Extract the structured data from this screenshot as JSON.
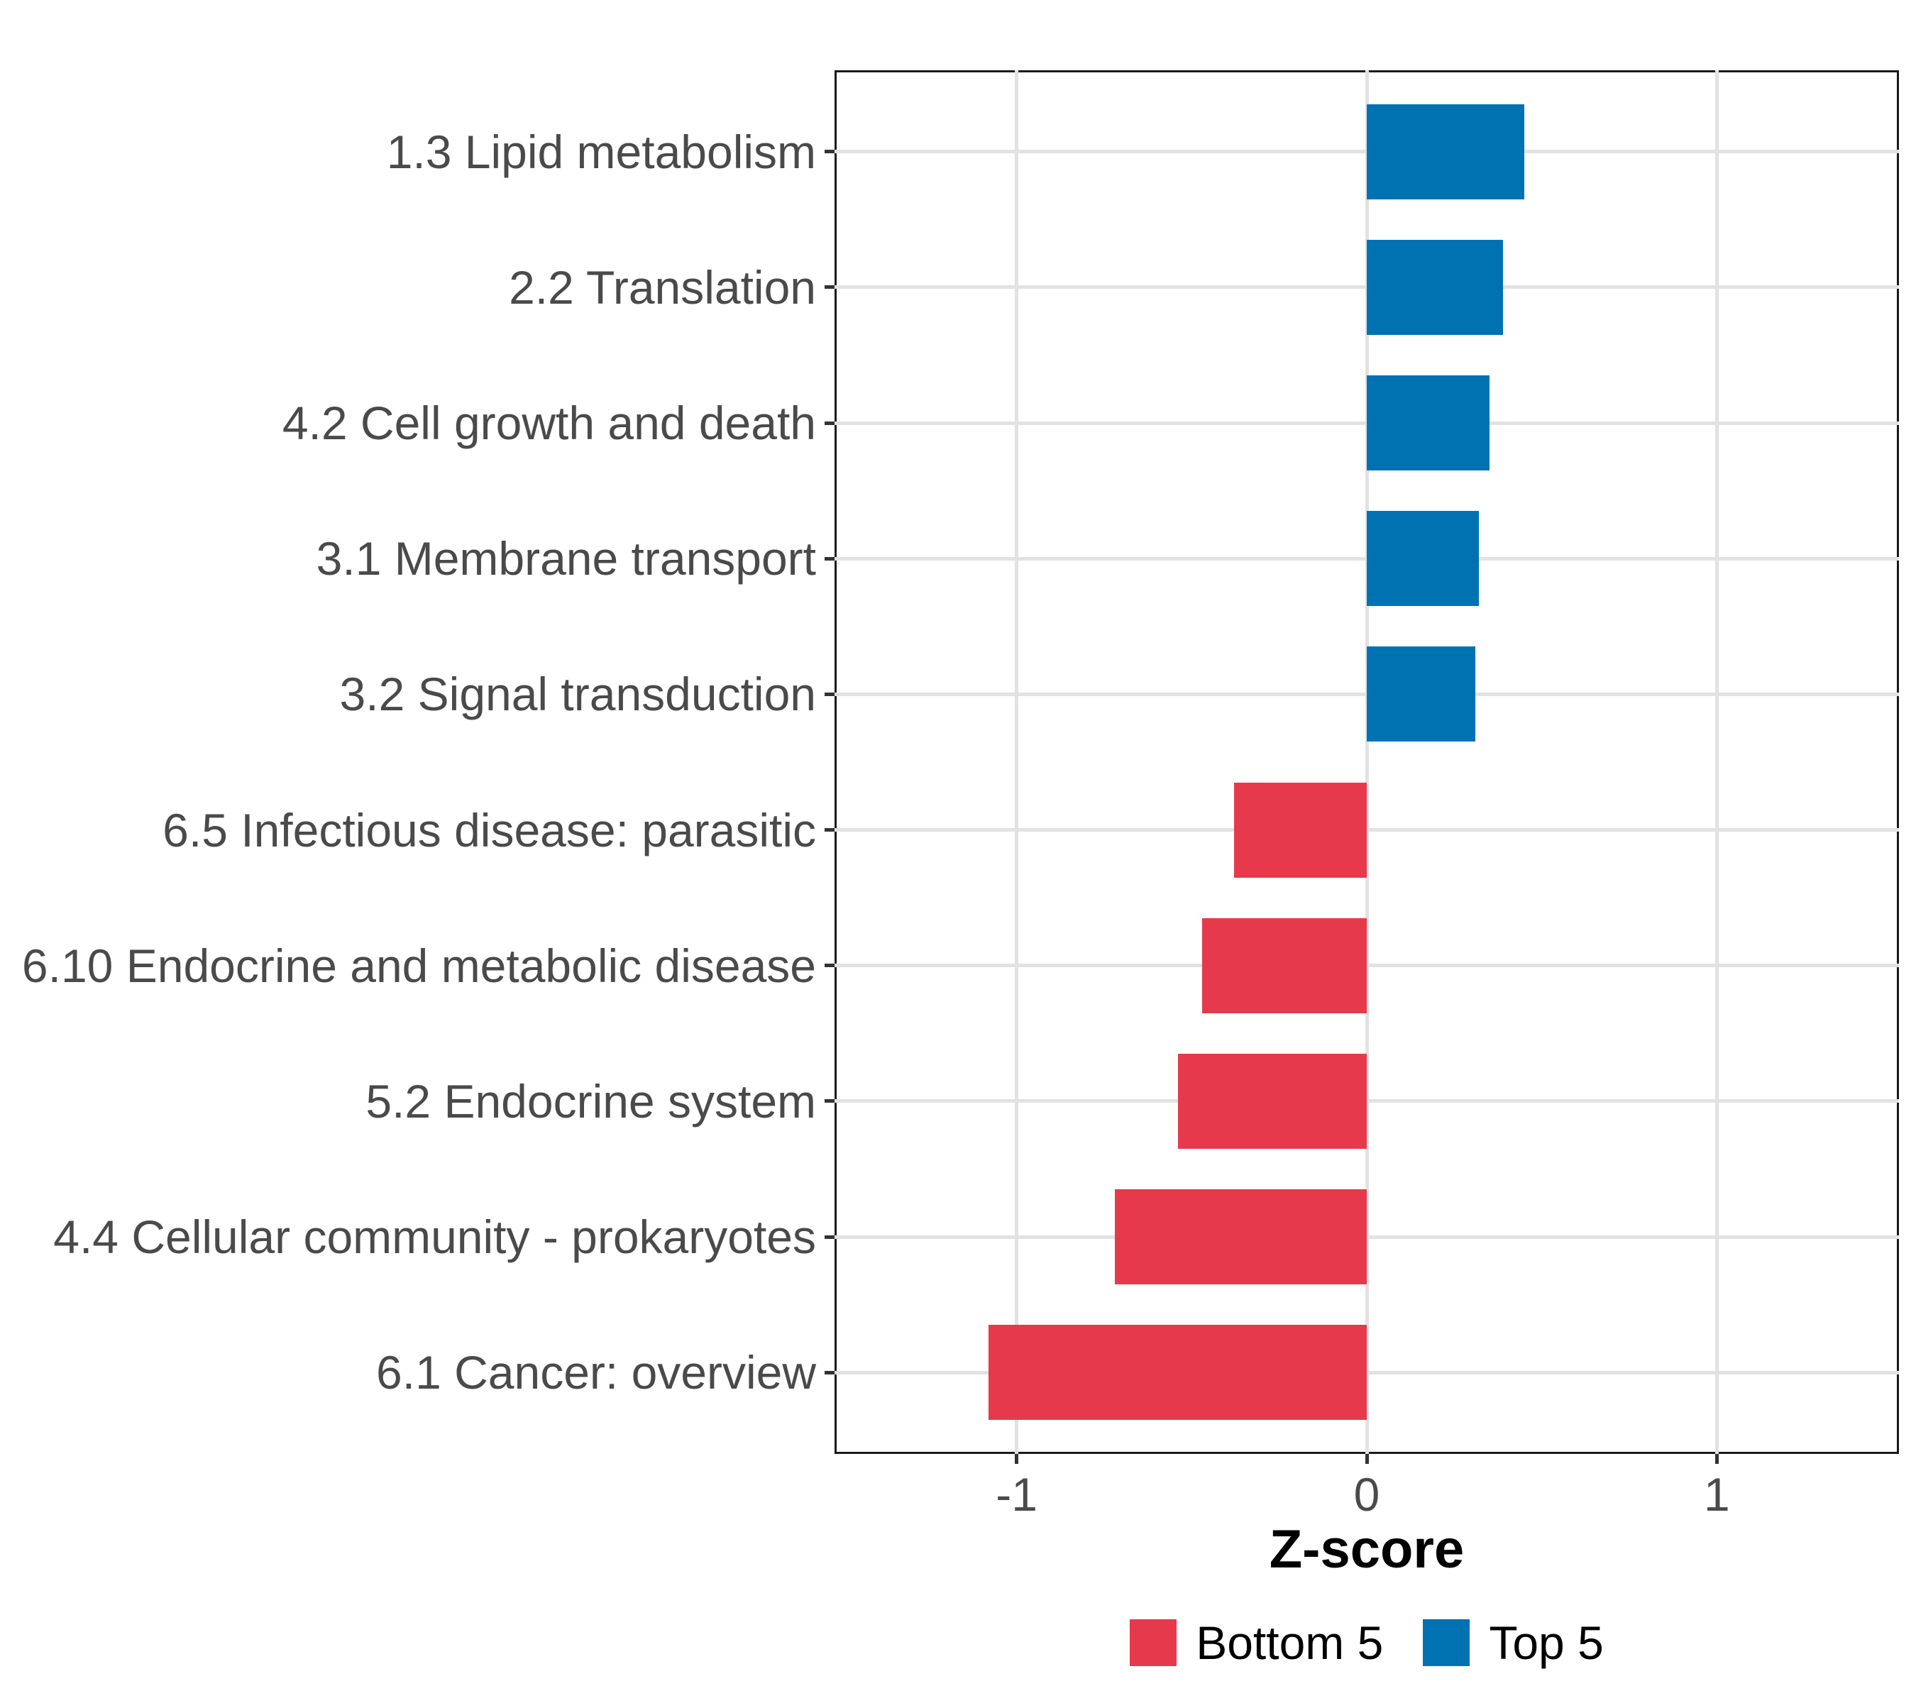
{
  "figure": {
    "background": "#FFFFFF"
  },
  "chart_data": {
    "type": "bar",
    "orientation": "horizontal",
    "title": "",
    "xlabel": "Z-score",
    "ylabel": "",
    "categories": [
      "1.3 Lipid metabolism",
      "2.2 Translation",
      "4.2 Cell growth and death",
      "3.1 Membrane transport",
      "3.2 Signal transduction",
      "6.5 Infectious disease: parasitic",
      "6.10 Endocrine and metabolic disease",
      "5.2 Endocrine system",
      "4.4 Cellular community - prokaryotes",
      "6.1 Cancer: overview"
    ],
    "values": [
      0.45,
      0.39,
      0.35,
      0.32,
      0.31,
      -0.38,
      -0.47,
      -0.54,
      -0.72,
      -1.08
    ],
    "groups": [
      "Top 5",
      "Top 5",
      "Top 5",
      "Top 5",
      "Top 5",
      "Bottom 5",
      "Bottom 5",
      "Bottom 5",
      "Bottom 5",
      "Bottom 5"
    ],
    "group_colors": {
      "Top 5": "#0072B2",
      "Bottom 5": "#E63A4C"
    },
    "x_ticks": [
      -1,
      0,
      1
    ],
    "xlim": [
      -1.52,
      1.52
    ],
    "grid": "major vertical gridlines at x ticks; horizontal gridline per category",
    "gridline_color": "#E2E2E2",
    "axis_text_color": "#4A4A4A",
    "axis_line_color": "#1A1A1A",
    "legend_position": "bottom-center",
    "legend": [
      {
        "label": "Bottom 5",
        "color": "#E63A4C"
      },
      {
        "label": "Top 5",
        "color": "#0072B2"
      }
    ]
  }
}
